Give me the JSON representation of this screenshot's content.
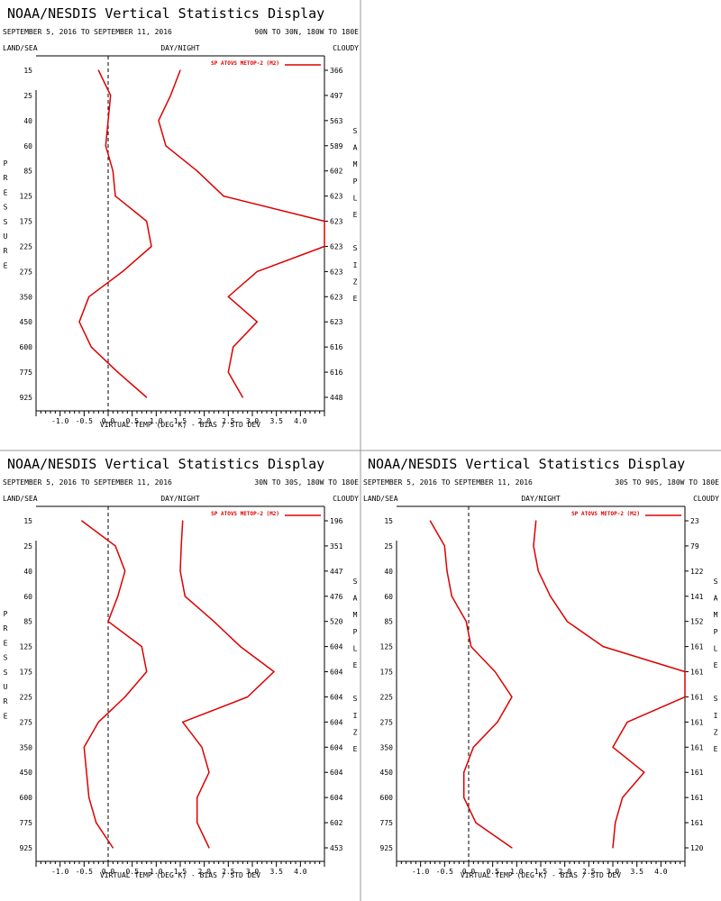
{
  "colors": {
    "series": "#dd0000",
    "axis": "#000000",
    "zero_line": "#000000",
    "divider": "#999999"
  },
  "panels": [
    {
      "title": "NOAA/NESDIS Vertical Statistics Display",
      "date_range": "SEPTEMBER 5, 2016 TO SEPTEMBER 11, 2016",
      "region": "90N TO 30N, 180W TO 180E",
      "land_sea": "LAND/SEA",
      "day_night": "DAY/NIGHT",
      "cloudy": "CLOUDY",
      "legend": "SP ATOVS METOP-2 (M2)",
      "left_title": "PRESSURE",
      "right_title": "SAMPLE SIZE",
      "xlabel": "VIRTUAL TEMP (DEG K) - BIAS / STD DEV",
      "sample_sizes": [
        "366",
        "497",
        "563",
        "589",
        "602",
        "623",
        "623",
        "623",
        "623",
        "623",
        "623",
        "616",
        "616",
        "448"
      ]
    },
    {
      "title": "NOAA/NESDIS Vertical Statistics Display",
      "date_range": "SEPTEMBER 5, 2016 TO SEPTEMBER 11, 2016",
      "region": "30N TO 30S, 180W TO 180E",
      "land_sea": "LAND/SEA",
      "day_night": "DAY/NIGHT",
      "cloudy": "CLOUDY",
      "legend": "SP ATOVS METOP-2 (M2)",
      "left_title": "PRESSURE",
      "right_title": "SAMPLE SIZE",
      "xlabel": "VIRTUAL TEMP (DEG K) - BIAS / STD DEV",
      "sample_sizes": [
        "196",
        "351",
        "447",
        "476",
        "520",
        "604",
        "604",
        "604",
        "604",
        "604",
        "604",
        "604",
        "602",
        "453"
      ]
    },
    {
      "title": "NOAA/NESDIS Vertical Statistics Display",
      "date_range": "SEPTEMBER 5, 2016 TO SEPTEMBER 11, 2016",
      "region": "30S TO 90S, 180W TO 180E",
      "land_sea": "LAND/SEA",
      "day_night": "DAY/NIGHT",
      "cloudy": "CLOUDY",
      "legend": "SP ATOVS METOP-2 (M2)",
      "left_title": "",
      "right_title": "SAMPLE SIZE",
      "xlabel": "VIRTUAL TEMP (DEG K) - BIAS / STD DEV",
      "sample_sizes": [
        "23",
        "79",
        "122",
        "141",
        "152",
        "161",
        "161",
        "161",
        "161",
        "161",
        "161",
        "161",
        "161",
        "120"
      ]
    }
  ],
  "chart_data": [
    {
      "type": "line",
      "title": "NOAA/NESDIS Vertical Statistics Display",
      "xlabel": "VIRTUAL TEMP (DEG K) - BIAS / STD DEV",
      "ylabel": "PRESSURE",
      "pressure_levels": [
        "15",
        "25",
        "40",
        "60",
        "85",
        "125",
        "175",
        "225",
        "275",
        "350",
        "450",
        "600",
        "775",
        "925"
      ],
      "x_ticks": [
        "-1.0",
        "-0.5",
        "0.0",
        "0.5",
        "1.0",
        "1.5",
        "2.0",
        "2.5",
        "3.0",
        "3.5",
        "4.0"
      ],
      "xlim": [
        -1.5,
        4.5
      ],
      "y_axis": "pressure (hPa)",
      "legend_position": "top-right",
      "series": [
        {
          "name": "SP ATOVS METOP-2 (M2)",
          "points": [
            [
              -0.2,
              15
            ],
            [
              0.05,
              25
            ],
            [
              0.0,
              40
            ],
            [
              -0.05,
              60
            ],
            [
              0.1,
              85
            ],
            [
              0.15,
              125
            ],
            [
              0.8,
              175
            ],
            [
              0.9,
              225
            ],
            [
              0.3,
              275
            ],
            [
              -0.4,
              350
            ],
            [
              -0.6,
              450
            ],
            [
              -0.35,
              600
            ],
            [
              0.2,
              775
            ],
            [
              0.8,
              925
            ]
          ]
        },
        {
          "name": "",
          "points": [
            [
              1.5,
              15
            ],
            [
              1.3,
              25
            ],
            [
              1.05,
              40
            ],
            [
              1.2,
              60
            ],
            [
              1.85,
              85
            ],
            [
              2.4,
              125
            ],
            [
              4.5,
              175
            ],
            [
              4.5,
              225
            ],
            [
              3.1,
              275
            ],
            [
              2.5,
              350
            ],
            [
              3.1,
              450
            ],
            [
              2.6,
              600
            ],
            [
              2.5,
              775
            ],
            [
              2.8,
              925
            ]
          ]
        }
      ]
    },
    {
      "type": "line",
      "title": "NOAA/NESDIS Vertical Statistics Display",
      "xlabel": "VIRTUAL TEMP (DEG K) - BIAS / STD DEV",
      "ylabel": "PRESSURE",
      "pressure_levels": [
        "15",
        "25",
        "40",
        "60",
        "85",
        "125",
        "175",
        "225",
        "275",
        "350",
        "450",
        "600",
        "775",
        "925"
      ],
      "x_ticks": [
        "-1.0",
        "-0.5",
        "0.0",
        "0.5",
        "1.0",
        "1.5",
        "2.0",
        "2.5",
        "3.0",
        "3.5",
        "4.0"
      ],
      "xlim": [
        -1.5,
        4.5
      ],
      "y_axis": "pressure (hPa)",
      "legend_position": "top-right",
      "series": [
        {
          "name": "SP ATOVS METOP-2 (M2)",
          "points": [
            [
              -0.55,
              15
            ],
            [
              0.15,
              25
            ],
            [
              0.35,
              40
            ],
            [
              0.2,
              60
            ],
            [
              0.0,
              85
            ],
            [
              0.7,
              125
            ],
            [
              0.8,
              175
            ],
            [
              0.35,
              225
            ],
            [
              -0.2,
              275
            ],
            [
              -0.5,
              350
            ],
            [
              -0.45,
              450
            ],
            [
              -0.4,
              600
            ],
            [
              -0.25,
              775
            ],
            [
              0.1,
              925
            ]
          ]
        },
        {
          "name": "",
          "points": [
            [
              1.55,
              15
            ],
            [
              1.52,
              25
            ],
            [
              1.5,
              40
            ],
            [
              1.6,
              60
            ],
            [
              2.2,
              85
            ],
            [
              2.75,
              125
            ],
            [
              3.45,
              175
            ],
            [
              2.9,
              225
            ],
            [
              1.55,
              275
            ],
            [
              1.95,
              350
            ],
            [
              2.1,
              450
            ],
            [
              1.85,
              600
            ],
            [
              1.85,
              775
            ],
            [
              2.1,
              925
            ]
          ]
        }
      ]
    },
    {
      "type": "line",
      "title": "NOAA/NESDIS Vertical Statistics Display",
      "xlabel": "VIRTUAL TEMP (DEG K) - BIAS / STD DEV",
      "ylabel": "",
      "pressure_levels": [
        "15",
        "25",
        "40",
        "60",
        "85",
        "125",
        "175",
        "225",
        "275",
        "350",
        "450",
        "600",
        "775",
        "925"
      ],
      "x_ticks": [
        "-1.0",
        "-0.5",
        "0.0",
        "0.5",
        "1.0",
        "1.5",
        "2.0",
        "2.5",
        "3.0",
        "3.5",
        "4.0"
      ],
      "xlim": [
        -1.5,
        4.5
      ],
      "y_axis": "pressure (hPa)",
      "legend_position": "top-right",
      "series": [
        {
          "name": "SP ATOVS METOP-2 (M2)",
          "points": [
            [
              -0.8,
              15
            ],
            [
              -0.5,
              25
            ],
            [
              -0.45,
              40
            ],
            [
              -0.35,
              60
            ],
            [
              -0.05,
              85
            ],
            [
              0.05,
              125
            ],
            [
              0.55,
              175
            ],
            [
              0.9,
              225
            ],
            [
              0.6,
              275
            ],
            [
              0.1,
              350
            ],
            [
              -0.1,
              450
            ],
            [
              -0.1,
              600
            ],
            [
              0.15,
              775
            ],
            [
              0.9,
              925
            ]
          ]
        },
        {
          "name": "",
          "points": [
            [
              1.4,
              15
            ],
            [
              1.35,
              25
            ],
            [
              1.45,
              40
            ],
            [
              1.7,
              60
            ],
            [
              2.05,
              85
            ],
            [
              2.8,
              125
            ],
            [
              4.5,
              175
            ],
            [
              4.5,
              225
            ],
            [
              3.3,
              275
            ],
            [
              3.0,
              350
            ],
            [
              3.65,
              450
            ],
            [
              3.2,
              600
            ],
            [
              3.05,
              775
            ],
            [
              3.0,
              925
            ]
          ]
        }
      ]
    }
  ]
}
